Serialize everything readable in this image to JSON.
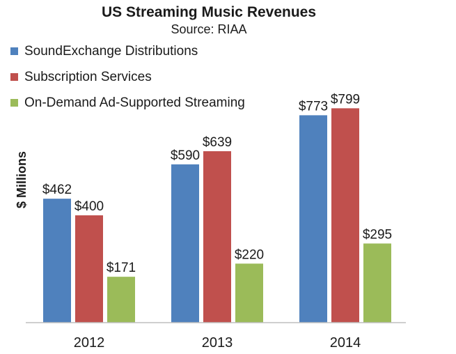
{
  "chart_data": {
    "type": "bar",
    "title": "US Streaming Music Revenues",
    "subtitle": "Source: RIAA",
    "xlabel": "",
    "ylabel": "$ Millions",
    "ylim": [
      0,
      800
    ],
    "grid": false,
    "legend_position": "top-left",
    "categories": [
      "2012",
      "2013",
      "2014"
    ],
    "series": [
      {
        "name": "SoundExchange Distributions",
        "color": "#4f81bd",
        "values": [
          462,
          590,
          773
        ],
        "labels": [
          "$462",
          "$590",
          "$773"
        ]
      },
      {
        "name": "Subscription Services",
        "color": "#c0504d",
        "values": [
          400,
          639,
          799
        ],
        "labels": [
          "$400",
          "$639",
          "$799"
        ]
      },
      {
        "name": "On-Demand Ad-Supported Streaming",
        "color": "#9bbb59",
        "values": [
          171,
          220,
          295
        ],
        "labels": [
          "$171",
          "$220",
          "$295"
        ]
      }
    ]
  }
}
